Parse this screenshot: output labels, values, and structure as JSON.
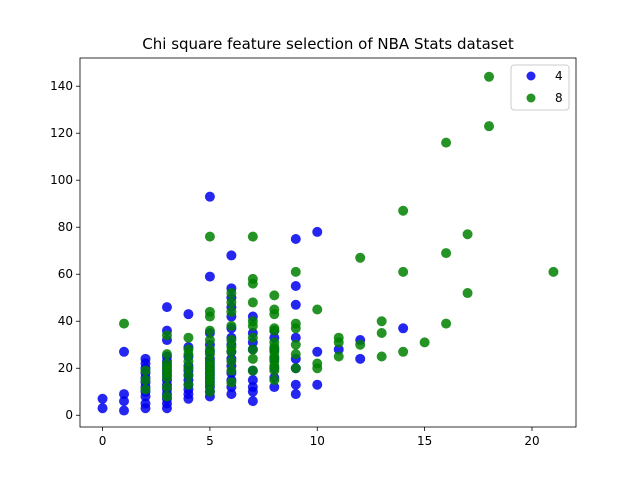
{
  "chart_data": {
    "type": "scatter",
    "title": "Chi square feature selection of NBA Stats dataset",
    "xlabel": "",
    "ylabel": "",
    "xlim": [
      -1.05,
      22.05
    ],
    "ylim": [
      -5,
      152
    ],
    "xticks": [
      0,
      5,
      10,
      15,
      20
    ],
    "yticks": [
      0,
      20,
      40,
      60,
      80,
      100,
      120,
      140
    ],
    "grid": false,
    "legend_position": "top-right",
    "series": [
      {
        "name": "4",
        "color": "#0000ee",
        "points": [
          [
            0,
            3
          ],
          [
            0,
            7
          ],
          [
            1,
            2
          ],
          [
            1,
            6
          ],
          [
            1,
            9
          ],
          [
            1,
            27
          ],
          [
            2,
            3
          ],
          [
            2,
            5
          ],
          [
            2,
            8
          ],
          [
            2,
            10
          ],
          [
            2,
            12
          ],
          [
            2,
            14
          ],
          [
            2,
            16
          ],
          [
            2,
            18
          ],
          [
            2,
            20
          ],
          [
            2,
            22
          ],
          [
            2,
            24
          ],
          [
            3,
            3
          ],
          [
            3,
            5
          ],
          [
            3,
            7
          ],
          [
            3,
            9
          ],
          [
            3,
            11
          ],
          [
            3,
            13
          ],
          [
            3,
            15
          ],
          [
            3,
            17
          ],
          [
            3,
            19
          ],
          [
            3,
            21
          ],
          [
            3,
            23
          ],
          [
            3,
            25
          ],
          [
            3,
            32
          ],
          [
            3,
            36
          ],
          [
            3,
            46
          ],
          [
            4,
            7
          ],
          [
            4,
            9
          ],
          [
            4,
            11
          ],
          [
            4,
            13
          ],
          [
            4,
            15
          ],
          [
            4,
            17
          ],
          [
            4,
            19
          ],
          [
            4,
            21
          ],
          [
            4,
            25
          ],
          [
            4,
            29
          ],
          [
            4,
            43
          ],
          [
            5,
            8
          ],
          [
            5,
            10
          ],
          [
            5,
            12
          ],
          [
            5,
            14
          ],
          [
            5,
            16
          ],
          [
            5,
            18
          ],
          [
            5,
            20
          ],
          [
            5,
            22
          ],
          [
            5,
            24
          ],
          [
            5,
            27
          ],
          [
            5,
            30
          ],
          [
            5,
            35
          ],
          [
            5,
            59
          ],
          [
            5,
            93
          ],
          [
            6,
            9
          ],
          [
            6,
            12
          ],
          [
            6,
            15
          ],
          [
            6,
            18
          ],
          [
            6,
            21
          ],
          [
            6,
            24
          ],
          [
            6,
            27
          ],
          [
            6,
            30
          ],
          [
            6,
            33
          ],
          [
            6,
            37
          ],
          [
            6,
            42
          ],
          [
            6,
            46
          ],
          [
            6,
            50
          ],
          [
            6,
            54
          ],
          [
            6,
            68
          ],
          [
            7,
            6
          ],
          [
            7,
            10
          ],
          [
            7,
            12
          ],
          [
            7,
            15
          ],
          [
            7,
            19
          ],
          [
            7,
            28
          ],
          [
            7,
            31
          ],
          [
            7,
            35
          ],
          [
            7,
            42
          ],
          [
            8,
            12
          ],
          [
            8,
            16
          ],
          [
            8,
            20
          ],
          [
            8,
            24
          ],
          [
            8,
            28
          ],
          [
            8,
            33
          ],
          [
            8,
            36
          ],
          [
            9,
            9
          ],
          [
            9,
            13
          ],
          [
            9,
            20
          ],
          [
            9,
            24
          ],
          [
            9,
            33
          ],
          [
            9,
            47
          ],
          [
            9,
            55
          ],
          [
            9,
            75
          ],
          [
            10,
            13
          ],
          [
            10,
            27
          ],
          [
            10,
            78
          ],
          [
            11,
            28
          ],
          [
            12,
            24
          ],
          [
            12,
            32
          ],
          [
            14,
            37
          ]
        ]
      },
      {
        "name": "8",
        "color": "#008000",
        "points": [
          [
            1,
            39
          ],
          [
            2,
            11
          ],
          [
            2,
            15
          ],
          [
            2,
            19
          ],
          [
            3,
            8
          ],
          [
            3,
            12
          ],
          [
            3,
            16
          ],
          [
            3,
            18
          ],
          [
            3,
            20
          ],
          [
            3,
            22
          ],
          [
            3,
            26
          ],
          [
            3,
            34
          ],
          [
            4,
            13
          ],
          [
            4,
            17
          ],
          [
            4,
            20
          ],
          [
            4,
            23
          ],
          [
            4,
            26
          ],
          [
            4,
            28
          ],
          [
            4,
            33
          ],
          [
            5,
            10
          ],
          [
            5,
            13
          ],
          [
            5,
            15
          ],
          [
            5,
            17
          ],
          [
            5,
            19
          ],
          [
            5,
            21
          ],
          [
            5,
            23
          ],
          [
            5,
            26
          ],
          [
            5,
            28
          ],
          [
            5,
            32
          ],
          [
            5,
            36
          ],
          [
            5,
            42
          ],
          [
            5,
            44
          ],
          [
            5,
            76
          ],
          [
            6,
            14
          ],
          [
            6,
            19
          ],
          [
            6,
            23
          ],
          [
            6,
            27
          ],
          [
            6,
            29
          ],
          [
            6,
            32
          ],
          [
            6,
            38
          ],
          [
            6,
            44
          ],
          [
            6,
            48
          ],
          [
            6,
            52
          ],
          [
            7,
            19
          ],
          [
            7,
            24
          ],
          [
            7,
            28
          ],
          [
            7,
            33
          ],
          [
            7,
            38
          ],
          [
            7,
            40
          ],
          [
            7,
            48
          ],
          [
            7,
            56
          ],
          [
            7,
            58
          ],
          [
            7,
            76
          ],
          [
            8,
            15
          ],
          [
            8,
            19
          ],
          [
            8,
            21
          ],
          [
            8,
            23
          ],
          [
            8,
            25
          ],
          [
            8,
            27
          ],
          [
            8,
            29
          ],
          [
            8,
            31
          ],
          [
            8,
            36
          ],
          [
            8,
            37
          ],
          [
            8,
            43
          ],
          [
            8,
            45
          ],
          [
            8,
            51
          ],
          [
            9,
            20
          ],
          [
            9,
            26
          ],
          [
            9,
            30
          ],
          [
            9,
            37
          ],
          [
            9,
            39
          ],
          [
            9,
            61
          ],
          [
            10,
            20
          ],
          [
            10,
            22
          ],
          [
            10,
            45
          ],
          [
            11,
            25
          ],
          [
            11,
            31
          ],
          [
            11,
            33
          ],
          [
            12,
            30
          ],
          [
            12,
            67
          ],
          [
            13,
            25
          ],
          [
            13,
            35
          ],
          [
            13,
            40
          ],
          [
            14,
            27
          ],
          [
            14,
            61
          ],
          [
            14,
            87
          ],
          [
            15,
            31
          ],
          [
            16,
            39
          ],
          [
            16,
            69
          ],
          [
            16,
            116
          ],
          [
            17,
            52
          ],
          [
            17,
            77
          ],
          [
            18,
            123
          ],
          [
            18,
            144
          ],
          [
            21,
            61
          ]
        ]
      }
    ]
  }
}
